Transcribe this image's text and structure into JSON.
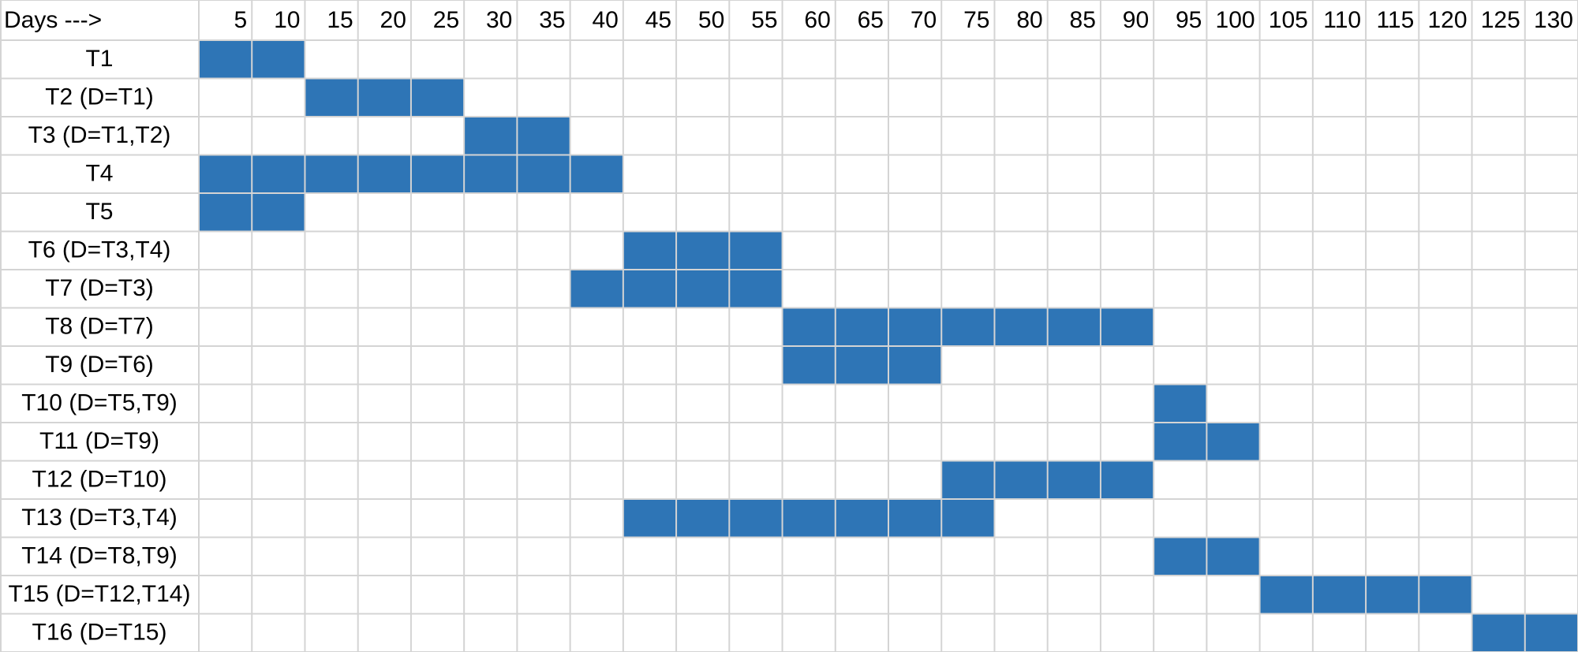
{
  "header": {
    "days_label": "Days --->"
  },
  "colors": {
    "bar": "#2e75b6",
    "grid": "#d4d4d4"
  },
  "chart_data": {
    "type": "gantt",
    "day_columns": [
      "5",
      "10",
      "15",
      "20",
      "25",
      "30",
      "35",
      "40",
      "45",
      "50",
      "55",
      "60",
      "65",
      "70",
      "75",
      "80",
      "85",
      "90",
      "95",
      "100",
      "105",
      "110",
      "115",
      "120",
      "125",
      "130"
    ],
    "tasks": [
      {
        "label": "T1",
        "start_day": 5,
        "end_day": 10
      },
      {
        "label": "T2 (D=T1)",
        "start_day": 15,
        "end_day": 25
      },
      {
        "label": "T3 (D=T1,T2)",
        "start_day": 30,
        "end_day": 35
      },
      {
        "label": "T4",
        "start_day": 5,
        "end_day": 40
      },
      {
        "label": "T5",
        "start_day": 5,
        "end_day": 10
      },
      {
        "label": "T6 (D=T3,T4)",
        "start_day": 45,
        "end_day": 55
      },
      {
        "label": "T7 (D=T3)",
        "start_day": 40,
        "end_day": 55
      },
      {
        "label": "T8 (D=T7)",
        "start_day": 60,
        "end_day": 90
      },
      {
        "label": "T9 (D=T6)",
        "start_day": 60,
        "end_day": 70
      },
      {
        "label": "T10 (D=T5,T9)",
        "start_day": 95,
        "end_day": 95
      },
      {
        "label": "T11 (D=T9)",
        "start_day": 95,
        "end_day": 100
      },
      {
        "label": "T12 (D=T10)",
        "start_day": 75,
        "end_day": 90
      },
      {
        "label": "T13 (D=T3,T4)",
        "start_day": 45,
        "end_day": 75
      },
      {
        "label": "T14 (D=T8,T9)",
        "start_day": 95,
        "end_day": 100
      },
      {
        "label": "T15 (D=T12,T14)",
        "start_day": 105,
        "end_day": 120
      },
      {
        "label": "T16 (D=T15)",
        "start_day": 125,
        "end_day": 130
      }
    ]
  }
}
